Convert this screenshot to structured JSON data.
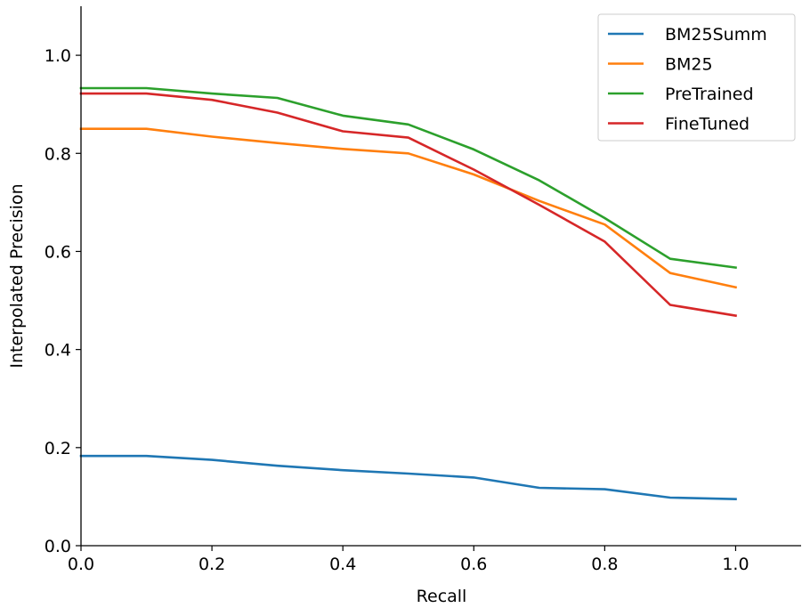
{
  "chart_data": {
    "type": "line",
    "title": "",
    "xlabel": "Recall",
    "ylabel": "Interpolated Precision",
    "xlim": [
      0.0,
      1.1
    ],
    "ylim": [
      0.0,
      1.1
    ],
    "x_ticks": [
      "0.0",
      "0.2",
      "0.4",
      "0.6",
      "0.8",
      "1.0"
    ],
    "y_ticks": [
      "0.0",
      "0.2",
      "0.4",
      "0.6",
      "0.8",
      "1.0"
    ],
    "grid": false,
    "legend_position": "top-right",
    "x": [
      0.0,
      0.1,
      0.2,
      0.3,
      0.4,
      0.5,
      0.6,
      0.7,
      0.8,
      0.9,
      1.0
    ],
    "series": [
      {
        "name": "BM25Summ",
        "color": "#1f77b4",
        "values": [
          0.183,
          0.183,
          0.175,
          0.163,
          0.154,
          0.147,
          0.139,
          0.118,
          0.115,
          0.098,
          0.095
        ]
      },
      {
        "name": "BM25",
        "color": "#ff7f0e",
        "values": [
          0.85,
          0.85,
          0.834,
          0.821,
          0.809,
          0.8,
          0.757,
          0.703,
          0.655,
          0.556,
          0.527
        ]
      },
      {
        "name": "PreTrained",
        "color": "#2ca02c",
        "values": [
          0.933,
          0.933,
          0.922,
          0.913,
          0.877,
          0.859,
          0.808,
          0.745,
          0.668,
          0.585,
          0.567
        ]
      },
      {
        "name": "FineTuned",
        "color": "#d62728",
        "values": [
          0.922,
          0.922,
          0.909,
          0.883,
          0.845,
          0.832,
          0.767,
          0.695,
          0.62,
          0.491,
          0.469
        ]
      }
    ]
  }
}
